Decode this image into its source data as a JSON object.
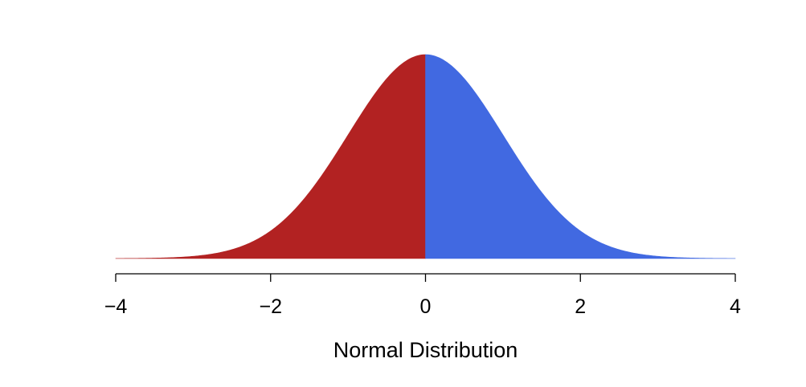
{
  "chart_data": {
    "type": "area",
    "distribution": "standard normal density",
    "mean": 0,
    "sd": 1,
    "xlabel": "Normal Distribution",
    "ylabel": "",
    "xlim": [
      -4,
      4
    ],
    "x_ticks": [
      -4,
      -2,
      0,
      2,
      4
    ],
    "x_tick_labels": [
      "−4",
      "−2",
      "0",
      "2",
      "4"
    ],
    "y_axis_visible": false,
    "grid": false,
    "regions": [
      {
        "from": -4,
        "to": 0,
        "color": "#B22222"
      },
      {
        "from": 0,
        "to": 4,
        "color": "#4169E1"
      }
    ]
  }
}
